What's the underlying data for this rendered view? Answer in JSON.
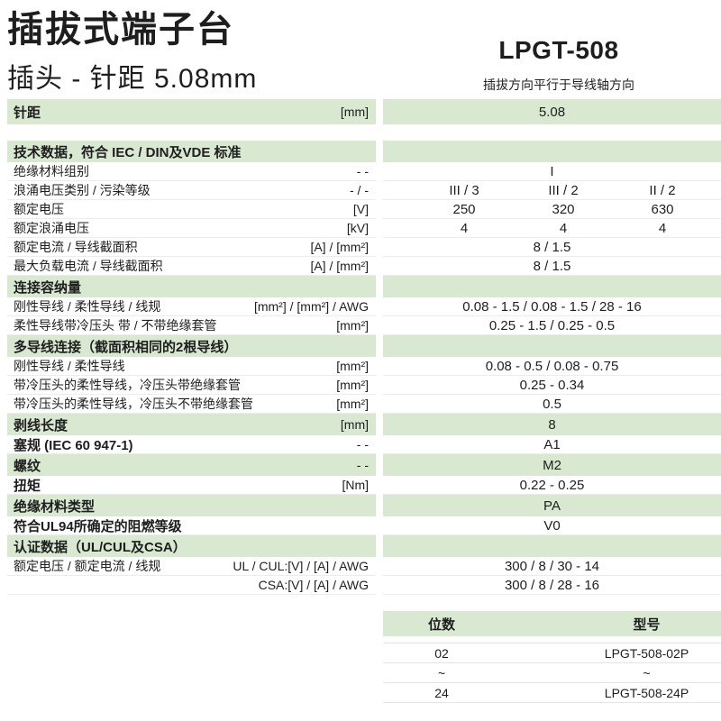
{
  "page": {
    "title": "插拔式端子台",
    "subtitle": "插头 - 针距  5.08mm",
    "model": "LPGT-508",
    "model_note": "插拔方向平行于导线轴方向"
  },
  "colors": {
    "row_green": "#d9e8d1",
    "text": "#1e1e1e",
    "divider": "#ececec"
  },
  "spec_table": {
    "rows": [
      {
        "type": "green",
        "label": "针距",
        "unit": "[mm]",
        "value": "5.08"
      },
      {
        "type": "spacer"
      },
      {
        "type": "section",
        "label": "技术数据，符合 IEC / DIN及VDE 标准"
      },
      {
        "type": "data",
        "label": "绝缘材料组别",
        "unit": "- -",
        "value": "I"
      },
      {
        "type": "data3",
        "label": "浪涌电压类别 / 污染等级",
        "unit": "- / -",
        "values": [
          "III / 3",
          "III / 2",
          "II / 2"
        ]
      },
      {
        "type": "data3",
        "label": "额定电压",
        "unit": "[V]",
        "values": [
          "250",
          "320",
          "630"
        ]
      },
      {
        "type": "data3",
        "label": "额定浪涌电压",
        "unit": "[kV]",
        "values": [
          "4",
          "4",
          "4"
        ]
      },
      {
        "type": "data",
        "label": "额定电流 / 导线截面积",
        "unit": "[A] / [mm²]",
        "value": "8 / 1.5"
      },
      {
        "type": "data",
        "label": "最大负载电流 / 导线截面积",
        "unit": "[A] / [mm²]",
        "value": "8 / 1.5"
      },
      {
        "type": "section",
        "label": "连接容纳量"
      },
      {
        "type": "data",
        "label": "刚性导线 / 柔性导线 / 线规",
        "unit": "[mm²] / [mm²] / AWG",
        "value": "0.08 - 1.5 / 0.08 - 1.5 / 28 - 16"
      },
      {
        "type": "data",
        "label": "柔性导线带冷压头 带 / 不带绝缘套管",
        "unit": "[mm²]",
        "value": "0.25 - 1.5 / 0.25 - 0.5"
      },
      {
        "type": "section",
        "label": "多导线连接（截面积相同的2根导线）"
      },
      {
        "type": "data",
        "label": "刚性导线 / 柔性导线",
        "unit": "[mm²]",
        "value": "0.08 - 0.5 / 0.08 - 0.75"
      },
      {
        "type": "data",
        "label": "带冷压头的柔性导线，冷压头带绝缘套管",
        "unit": "[mm²]",
        "value": "0.25 - 0.34"
      },
      {
        "type": "data",
        "label": "带冷压头的柔性导线，冷压头不带绝缘套管",
        "unit": "[mm²]",
        "value": "0.5"
      },
      {
        "type": "green",
        "label": "剥线长度",
        "unit": "[mm]",
        "value": "8"
      },
      {
        "type": "data_bold",
        "label": "塞规 (IEC 60 947-1)",
        "unit": "- -",
        "value": "A1"
      },
      {
        "type": "green",
        "label": "螺纹",
        "unit": "- -",
        "value": "M2"
      },
      {
        "type": "data_bold",
        "label": "扭矩",
        "unit": "[Nm]",
        "value": "0.22 - 0.25"
      },
      {
        "type": "green",
        "label": "绝缘材料类型",
        "unit": "",
        "value": "PA"
      },
      {
        "type": "data_bold",
        "label": "符合UL94所确定的阻燃等级",
        "unit": "",
        "value": "V0"
      },
      {
        "type": "section",
        "label": "认证数据（UL/CUL及CSA）"
      },
      {
        "type": "data",
        "label": "额定电压 / 额定电流 / 线规",
        "unit": "UL / CUL:[V] / [A] / AWG",
        "value": "300 / 8 / 30 - 14"
      },
      {
        "type": "data",
        "label": "",
        "unit": "CSA:[V] / [A] / AWG",
        "value": "300 / 8 / 28 - 16"
      }
    ]
  },
  "order_table": {
    "headers": [
      "位数",
      "型号"
    ],
    "rows": [
      [
        "02",
        "LPGT-508-02P"
      ],
      [
        "~",
        "~"
      ],
      [
        "24",
        "LPGT-508-24P"
      ]
    ]
  }
}
